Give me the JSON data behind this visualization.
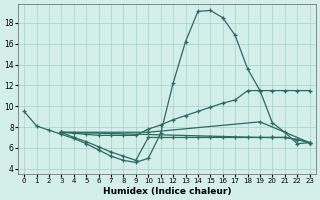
{
  "xlabel": "Humidex (Indice chaleur)",
  "bg_color": "#d4eeea",
  "grid_color": "#aacfca",
  "line_color": "#2a6b60",
  "xlim": [
    -0.5,
    23.5
  ],
  "ylim": [
    3.5,
    19.8
  ],
  "yticks": [
    4,
    6,
    8,
    10,
    12,
    14,
    16,
    18
  ],
  "xticks": [
    0,
    1,
    2,
    3,
    4,
    5,
    6,
    7,
    8,
    9,
    10,
    11,
    12,
    13,
    14,
    15,
    16,
    17,
    18,
    19,
    20,
    21,
    22,
    23
  ],
  "lines": [
    {
      "x": [
        0,
        1,
        2,
        3,
        4,
        5,
        6,
        7,
        8,
        9,
        10,
        11,
        12,
        13,
        14,
        15,
        16,
        17,
        18,
        19,
        20,
        21,
        22,
        23
      ],
      "y": [
        9.5,
        8.1,
        7.7,
        7.3,
        6.9,
        6.4,
        5.8,
        5.2,
        4.8,
        4.6,
        5.0,
        7.4,
        12.2,
        16.2,
        19.1,
        19.2,
        18.5,
        16.8,
        13.6,
        11.5,
        8.4,
        7.5,
        6.4,
        6.5
      ]
    },
    {
      "x": [
        3,
        4,
        5,
        6,
        7,
        8,
        9,
        10,
        11,
        12,
        13,
        14,
        15,
        16,
        17,
        18,
        19,
        20,
        21,
        22,
        23
      ],
      "y": [
        7.5,
        7.4,
        7.3,
        7.2,
        7.2,
        7.2,
        7.2,
        7.8,
        8.2,
        8.7,
        9.1,
        9.5,
        9.9,
        10.3,
        10.6,
        11.5,
        11.5,
        11.5,
        11.5,
        11.5,
        11.5
      ]
    },
    {
      "x": [
        3,
        10,
        19,
        23
      ],
      "y": [
        7.5,
        7.5,
        8.5,
        6.5
      ]
    },
    {
      "x": [
        3,
        19,
        20,
        21,
        22,
        23
      ],
      "y": [
        7.5,
        7.0,
        7.0,
        7.0,
        6.8,
        6.5
      ]
    },
    {
      "x": [
        3,
        4,
        5,
        6,
        7,
        8,
        9,
        10,
        11,
        12,
        13,
        14,
        15,
        16,
        17,
        18,
        19,
        20,
        21,
        22,
        23
      ],
      "y": [
        7.5,
        7.0,
        6.6,
        6.1,
        5.6,
        5.2,
        4.8,
        7.0,
        7.0,
        7.0,
        7.0,
        7.0,
        7.0,
        7.0,
        7.0,
        7.0,
        7.0,
        7.0,
        7.0,
        6.8,
        6.5
      ]
    }
  ]
}
